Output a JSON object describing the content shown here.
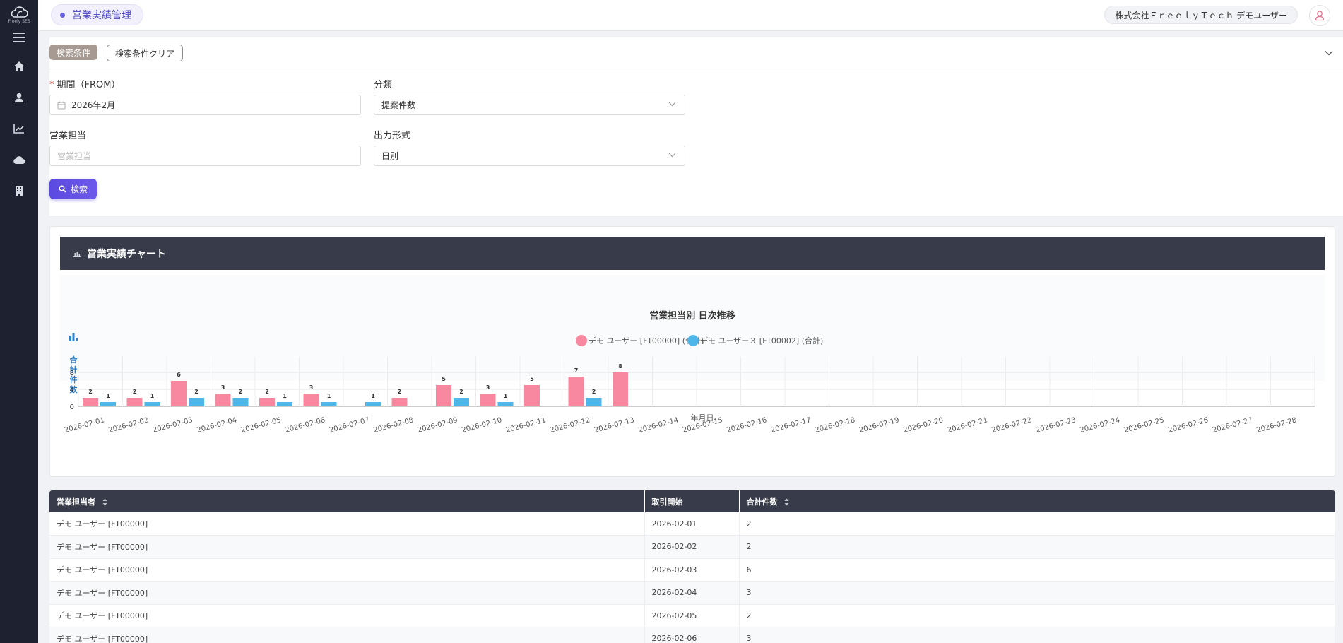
{
  "app": {
    "logo_text": "Freely SES"
  },
  "sidebar": {
    "items": [
      {
        "icon": "home-icon"
      },
      {
        "icon": "user-icon"
      },
      {
        "icon": "chart-line-icon"
      },
      {
        "icon": "cloud-icon"
      },
      {
        "icon": "building-icon"
      }
    ]
  },
  "header": {
    "page_title": "営業実績管理",
    "company_user": "株式会社ＦｒｅｅｌｙＴｅｃｈ デモユーザー"
  },
  "search": {
    "conditions_label": "検索条件",
    "clear_label": "検索条件クリア",
    "period_label": "期間（FROM）",
    "period_required_mark": "*",
    "period_value": "2026年2月",
    "category_label": "分類",
    "category_value": "提案件数",
    "sales_rep_label": "営業担当",
    "sales_rep_placeholder": "営業担当",
    "output_label": "出力形式",
    "output_value": "日別",
    "search_button": "検索"
  },
  "chart_card": {
    "title": "営業実績チャート"
  },
  "chart_data": {
    "type": "bar",
    "title": "営業担当別 日次推移",
    "xlabel": "年月日",
    "ylabel": "合計件数",
    "ylim": [
      0,
      10
    ],
    "yticks": [
      0,
      4,
      8
    ],
    "legend_position": "top-center",
    "categories": [
      "2026-02-01",
      "2026-02-02",
      "2026-02-03",
      "2026-02-04",
      "2026-02-05",
      "2026-02-06",
      "2026-02-07",
      "2026-02-08",
      "2026-02-09",
      "2026-02-10",
      "2026-02-11",
      "2026-02-12",
      "2026-02-13",
      "2026-02-14",
      "2026-02-15",
      "2026-02-16",
      "2026-02-17",
      "2026-02-18",
      "2026-02-19",
      "2026-02-20",
      "2026-02-21",
      "2026-02-22",
      "2026-02-23",
      "2026-02-24",
      "2026-02-25",
      "2026-02-26",
      "2026-02-27",
      "2026-02-28"
    ],
    "series": [
      {
        "name": "デモ ユーザー [FT00000] (合計)",
        "color": "#f7889f",
        "values": [
          2,
          2,
          6,
          3,
          2,
          3,
          null,
          2,
          5,
          3,
          5,
          7,
          8,
          null,
          null,
          null,
          null,
          null,
          null,
          null,
          null,
          null,
          null,
          null,
          null,
          null,
          null,
          null
        ]
      },
      {
        "name": "デモ ユーザー３ [FT00002] (合計)",
        "color": "#4fb6ea",
        "values": [
          1,
          1,
          2,
          2,
          1,
          1,
          1,
          null,
          2,
          1,
          null,
          2,
          null,
          null,
          null,
          null,
          null,
          null,
          null,
          null,
          null,
          null,
          null,
          null,
          null,
          null,
          null,
          null
        ]
      }
    ]
  },
  "table": {
    "headers": [
      "営業担当者",
      "取引開始",
      "合計件数"
    ],
    "rows": [
      [
        "デモ ユーザー [FT00000]",
        "2026-02-01",
        "2"
      ],
      [
        "デモ ユーザー [FT00000]",
        "2026-02-02",
        "2"
      ],
      [
        "デモ ユーザー [FT00000]",
        "2026-02-03",
        "6"
      ],
      [
        "デモ ユーザー [FT00000]",
        "2026-02-04",
        "3"
      ],
      [
        "デモ ユーザー [FT00000]",
        "2026-02-05",
        "2"
      ],
      [
        "デモ ユーザー [FT00000]",
        "2026-02-06",
        "3"
      ]
    ]
  }
}
